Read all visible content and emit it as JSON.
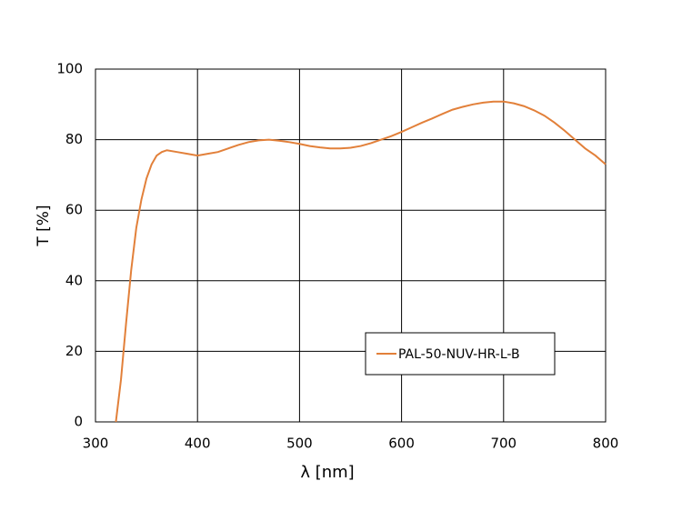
{
  "chart_data": {
    "type": "line",
    "x_label": "λ [nm]",
    "y_label": "T [%]",
    "x": [
      320,
      325,
      330,
      335,
      340,
      345,
      350,
      355,
      360,
      365,
      370,
      380,
      390,
      400,
      410,
      420,
      430,
      440,
      450,
      460,
      470,
      480,
      490,
      500,
      510,
      520,
      530,
      540,
      550,
      560,
      570,
      580,
      590,
      600,
      610,
      620,
      630,
      640,
      650,
      660,
      670,
      680,
      690,
      700,
      710,
      720,
      730,
      740,
      750,
      760,
      770,
      780,
      790,
      800
    ],
    "series": [
      {
        "name": "PAL-50-NUV-HR-L-B",
        "color": "#e2803a",
        "values": [
          0,
          12,
          28,
          43,
          55,
          63,
          69,
          73,
          75.5,
          76.5,
          77,
          76.5,
          76,
          75.5,
          76,
          76.5,
          77.5,
          78.5,
          79.3,
          79.8,
          80,
          79.7,
          79.3,
          78.8,
          78.2,
          77.8,
          77.5,
          77.5,
          77.7,
          78.2,
          79,
          80,
          81,
          82.2,
          83.5,
          84.8,
          86,
          87.3,
          88.5,
          89.3,
          90,
          90.5,
          90.8,
          90.8,
          90.3,
          89.5,
          88.3,
          86.8,
          84.8,
          82.5,
          80,
          77.5,
          75.5,
          73
        ]
      }
    ],
    "xlim": [
      300,
      800
    ],
    "xticks": [
      300,
      400,
      500,
      600,
      700,
      800
    ],
    "ylim": [
      0,
      100
    ],
    "yticks": [
      0,
      20,
      40,
      60,
      80,
      100
    ],
    "grid": true,
    "legend": "lower right"
  }
}
